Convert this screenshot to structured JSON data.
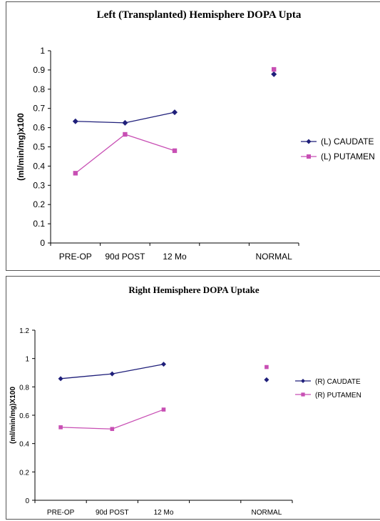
{
  "chart_data": [
    {
      "type": "line",
      "title": "Left (Transplanted) Hemisphere DOPA Upta",
      "ylabel": "(ml/min/mg)x100",
      "xlabel": "",
      "categories": [
        "PRE-OP",
        "90d POST",
        "12 Mo",
        "",
        "NORMAL"
      ],
      "ylim": [
        0,
        1
      ],
      "yticks": [
        "0",
        "0.1",
        "0.2",
        "0.3",
        "0.4",
        "0.5",
        "0.6",
        "0.7",
        "0.8",
        "0.9",
        "1"
      ],
      "grid": false,
      "legend_position": "right",
      "series": [
        {
          "name": "(L) CAUDATE",
          "color": "#1f1f7a",
          "marker": "diamond",
          "values": [
            0.633,
            0.625,
            0.68,
            null,
            0.878
          ]
        },
        {
          "name": "(L) PUTAMEN",
          "color": "#c84fb4",
          "marker": "square",
          "values": [
            0.363,
            0.565,
            0.48,
            null,
            0.903
          ]
        }
      ]
    },
    {
      "type": "line",
      "title": "Right Hemisphere DOPA Uptake",
      "ylabel": "(ml/min/mg)X100",
      "xlabel": "",
      "categories": [
        "PRE-OP",
        "90d POST",
        "12 Mo",
        "",
        "NORMAL"
      ],
      "ylim": [
        0,
        1.2
      ],
      "yticks": [
        "0",
        "0.2",
        "0.4",
        "0.6",
        "0.8",
        "1",
        "1.2"
      ],
      "grid": false,
      "legend_position": "right",
      "series": [
        {
          "name": "(R) CAUDATE",
          "color": "#1f1f7a",
          "marker": "diamond",
          "values": [
            0.858,
            0.892,
            0.96,
            null,
            0.85
          ]
        },
        {
          "name": "(R) PUTAMEN",
          "color": "#c84fb4",
          "marker": "square",
          "values": [
            0.515,
            0.503,
            0.64,
            null,
            0.94
          ]
        }
      ]
    }
  ]
}
